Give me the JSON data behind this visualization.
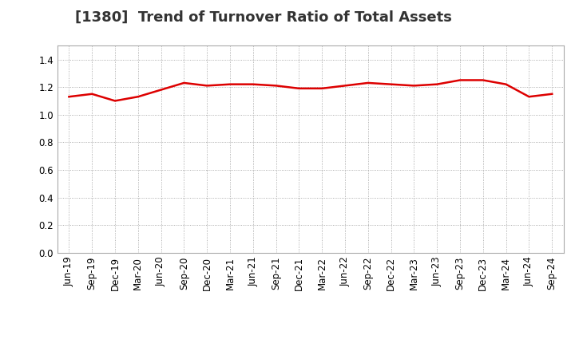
{
  "title": "[1380]  Trend of Turnover Ratio of Total Assets",
  "x_labels": [
    "Jun-19",
    "Sep-19",
    "Dec-19",
    "Mar-20",
    "Jun-20",
    "Sep-20",
    "Dec-20",
    "Mar-21",
    "Jun-21",
    "Sep-21",
    "Dec-21",
    "Mar-22",
    "Jun-22",
    "Sep-22",
    "Dec-22",
    "Mar-23",
    "Jun-23",
    "Sep-23",
    "Dec-23",
    "Mar-24",
    "Jun-24",
    "Sep-24"
  ],
  "values": [
    1.13,
    1.15,
    1.1,
    1.13,
    1.18,
    1.23,
    1.21,
    1.22,
    1.22,
    1.21,
    1.19,
    1.19,
    1.21,
    1.23,
    1.22,
    1.21,
    1.22,
    1.25,
    1.25,
    1.22,
    1.13,
    1.15
  ],
  "line_color": "#dd0000",
  "line_width": 1.8,
  "ylim": [
    0.0,
    1.5
  ],
  "yticks": [
    0.0,
    0.2,
    0.4,
    0.6,
    0.8,
    1.0,
    1.2,
    1.4
  ],
  "bg_color": "#ffffff",
  "plot_bg_color": "#ffffff",
  "grid_color": "#999999",
  "title_fontsize": 13,
  "tick_fontsize": 8.5,
  "title_color": "#333333"
}
